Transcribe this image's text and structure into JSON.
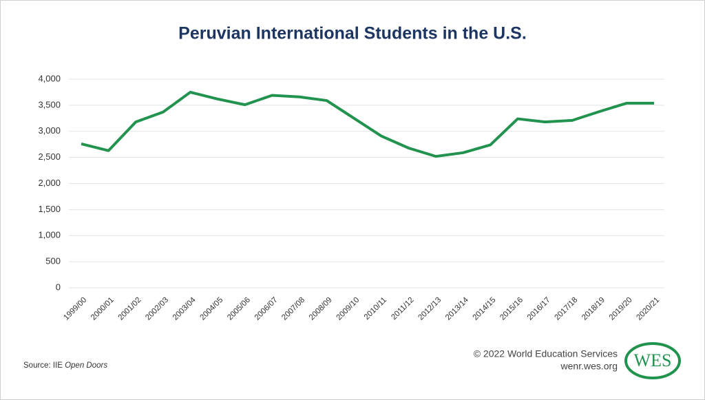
{
  "chart_data": {
    "type": "line",
    "title": "Peruvian International Students in the U.S.",
    "categories": [
      "1999/00",
      "2000/01",
      "2001/02",
      "2002/03",
      "2003/04",
      "2004/05",
      "2005/06",
      "2006/07",
      "2007/08",
      "2008/09",
      "2009/10",
      "2010/11",
      "2011/12",
      "2012/13",
      "2013/14",
      "2014/15",
      "2015/16",
      "2016/17",
      "2017/18",
      "2018/19",
      "2019/20",
      "2020/21"
    ],
    "series": [
      {
        "name": "Peruvian students",
        "color": "#22934f",
        "values": [
          2760,
          2630,
          3180,
          3370,
          3750,
          3620,
          3510,
          3690,
          3660,
          3590,
          3250,
          2910,
          2680,
          2520,
          2590,
          2740,
          3240,
          3180,
          3210,
          3380,
          3540,
          3540
        ]
      }
    ],
    "ylim": [
      0,
      4000
    ],
    "yticks": [
      0,
      500,
      {
        "value": 1000,
        "label": "1,000"
      },
      {
        "value": 1500,
        "label": "1,500"
      },
      {
        "value": 2000,
        "label": "2,000"
      },
      {
        "value": 2500,
        "label": "2,500"
      },
      {
        "value": 3000,
        "label": "3,000"
      },
      {
        "value": 3500,
        "label": "3,500"
      },
      {
        "value": 4000,
        "label": "4,000"
      }
    ],
    "grid": true
  },
  "footer": {
    "source": "Source: IIE",
    "source_italic": "Open Doors",
    "copyright": "© 2022 World Education Services",
    "website": "wenr.wes.org",
    "logo": "WES"
  }
}
